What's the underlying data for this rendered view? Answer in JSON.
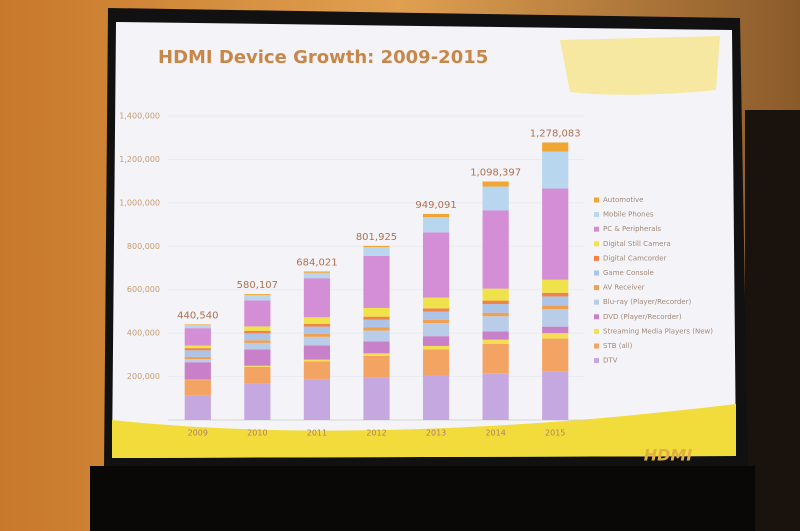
{
  "chart_data": {
    "type": "stacked_bar",
    "title": "HDMI Device Growth: 2009-2015",
    "categories": [
      "2009",
      "2010",
      "2011",
      "2012",
      "2013",
      "2014",
      "2015"
    ],
    "series": [
      {
        "name": "DTV",
        "color": "#c6a8e0",
        "values": [
          112000,
          170000,
          185000,
          195000,
          205000,
          215000,
          225000
        ]
      },
      {
        "name": "STB (all)",
        "color": "#f4a462",
        "values": [
          72000,
          75000,
          85000,
          100000,
          120000,
          135000,
          150000
        ]
      },
      {
        "name": "Streaming Media Players (New)",
        "color": "#f3de55",
        "values": [
          2000,
          5000,
          8000,
          12000,
          16000,
          20000,
          25000
        ]
      },
      {
        "name": "DVD (Player/Recorder)",
        "color": "#c880c8",
        "values": [
          80000,
          75000,
          65000,
          55000,
          45000,
          38000,
          30000
        ]
      },
      {
        "name": "Blu-ray (Player/Recorder)",
        "color": "#b9cde8",
        "values": [
          15000,
          30000,
          40000,
          50000,
          60000,
          70000,
          80000
        ]
      },
      {
        "name": "AV Receiver",
        "color": "#f0a050",
        "values": [
          10000,
          12000,
          13000,
          14000,
          15000,
          16000,
          17000
        ]
      },
      {
        "name": "Game Console",
        "color": "#adc4e6",
        "values": [
          30000,
          32000,
          34000,
          36000,
          38000,
          40000,
          42000
        ]
      },
      {
        "name": "Digital Camcorder",
        "color": "#f08448",
        "values": [
          10000,
          12000,
          13000,
          14000,
          15000,
          16000,
          17000
        ]
      },
      {
        "name": "Digital Still Camera",
        "color": "#f0e24a",
        "values": [
          12000,
          20000,
          30000,
          40000,
          50000,
          55000,
          60000
        ]
      },
      {
        "name": "PC & Peripherals",
        "color": "#d48ed6",
        "values": [
          80000,
          120000,
          180000,
          240000,
          300000,
          360000,
          420000
        ]
      },
      {
        "name": "Mobile Phones",
        "color": "#b8d6ee",
        "values": [
          15000,
          25000,
          25000,
          40000,
          70000,
          110000,
          170000
        ]
      },
      {
        "name": "Automotive",
        "color": "#f0a632",
        "values": [
          2540,
          4107,
          6021,
          5925,
          15091,
          23397,
          42083
        ]
      }
    ],
    "totals": [
      440540,
      580107,
      684021,
      801925,
      949091,
      1098397,
      1278083
    ],
    "total_labels": [
      "440,540",
      "580,107",
      "684,021",
      "801,925",
      "949,091",
      "1,098,397",
      "1,278,083"
    ],
    "ylim": [
      0,
      1400000
    ],
    "yticks": [
      {
        "value": 200000,
        "label": "200,000"
      },
      {
        "value": 400000,
        "label": "400,000"
      },
      {
        "value": 600000,
        "label": "600,000"
      },
      {
        "value": 800000,
        "label": "800,000"
      },
      {
        "value": 1000000,
        "label": "1,000,000"
      },
      {
        "value": 1200000,
        "label": "1,200,000"
      },
      {
        "value": 1400000,
        "label": "1,400,000"
      }
    ],
    "grid": true,
    "legend": "right",
    "logo": "HDMI"
  }
}
